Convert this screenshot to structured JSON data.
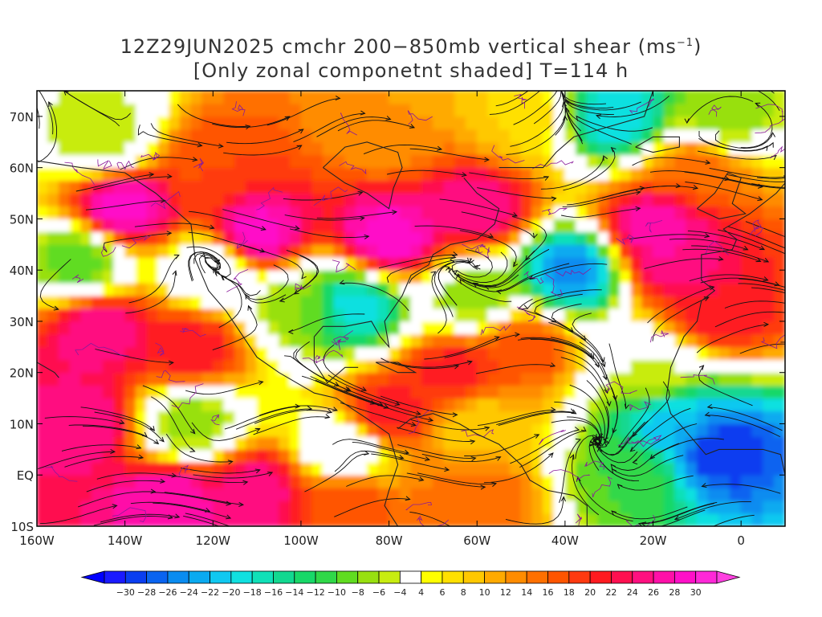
{
  "title": {
    "line1_prefix": "12Z29JUN2025 cmchr 200−850mb vertical shear (ms",
    "line1_sup": "−1",
    "line1_suffix": ")",
    "line2": "[Only zonal componetnt shaded] T=114 h"
  },
  "map": {
    "lon_range": [
      -160,
      10
    ],
    "lat_range": [
      -10,
      75
    ],
    "lat_ticks": [
      {
        "value": 70,
        "label": "70N"
      },
      {
        "value": 60,
        "label": "60N"
      },
      {
        "value": 50,
        "label": "50N"
      },
      {
        "value": 40,
        "label": "40N"
      },
      {
        "value": 30,
        "label": "30N"
      },
      {
        "value": 20,
        "label": "20N"
      },
      {
        "value": 10,
        "label": "10N"
      },
      {
        "value": 0,
        "label": "EQ"
      },
      {
        "value": -10,
        "label": "10S"
      }
    ],
    "lon_ticks": [
      {
        "value": -160,
        "label": "160W"
      },
      {
        "value": -140,
        "label": "140W"
      },
      {
        "value": -120,
        "label": "120W"
      },
      {
        "value": -100,
        "label": "100W"
      },
      {
        "value": -80,
        "label": "80W"
      },
      {
        "value": -60,
        "label": "60W"
      },
      {
        "value": -40,
        "label": "40W"
      },
      {
        "value": -20,
        "label": "20W"
      },
      {
        "value": 0,
        "label": "0"
      }
    ]
  },
  "colorbar": {
    "labels": [
      "−30",
      "−28",
      "−26",
      "−24",
      "−22",
      "−20",
      "−18",
      "−16",
      "−14",
      "−12",
      "−10",
      "−8",
      "−6",
      "−4",
      "4",
      "6",
      "8",
      "10",
      "12",
      "14",
      "16",
      "18",
      "20",
      "22",
      "24",
      "26",
      "28",
      "30"
    ],
    "colors": [
      "#1a1aff",
      "#0a3ef0",
      "#0a64f0",
      "#0a8cf0",
      "#0aaaf0",
      "#10c8f0",
      "#10e0e0",
      "#10e0b8",
      "#12d890",
      "#18d868",
      "#30d848",
      "#60dc20",
      "#98e010",
      "#c8ec10",
      "#ffffff",
      "#ffff00",
      "#ffe000",
      "#ffc800",
      "#ffaa00",
      "#ff8c00",
      "#ff7000",
      "#ff5500",
      "#ff3a10",
      "#ff1a20",
      "#ff1050",
      "#ff1080",
      "#ff10a8",
      "#ff10c8",
      "#ff28d8"
    ]
  },
  "shading": {
    "centers": [
      {
        "lon": -140,
        "lat": 52,
        "v": 30
      },
      {
        "lon": -110,
        "lat": 47,
        "v": 30
      },
      {
        "lon": -80,
        "lat": 46,
        "v": 30
      },
      {
        "lon": -60,
        "lat": 52,
        "v": 26
      },
      {
        "lon": -120,
        "lat": 60,
        "v": 18
      },
      {
        "lon": -145,
        "lat": 28,
        "v": 26
      },
      {
        "lon": -125,
        "lat": 25,
        "v": 22
      },
      {
        "lon": -150,
        "lat": 10,
        "v": 26
      },
      {
        "lon": -130,
        "lat": -5,
        "v": 28
      },
      {
        "lon": -110,
        "lat": -3,
        "v": 26
      },
      {
        "lon": -90,
        "lat": -5,
        "v": 18
      },
      {
        "lon": -60,
        "lat": -5,
        "v": 16
      },
      {
        "lon": -65,
        "lat": 20,
        "v": 22
      },
      {
        "lon": -50,
        "lat": 25,
        "v": 18
      },
      {
        "lon": -80,
        "lat": 12,
        "v": 22
      },
      {
        "lon": -15,
        "lat": 42,
        "v": 26
      },
      {
        "lon": -5,
        "lat": 32,
        "v": 22
      },
      {
        "lon": -20,
        "lat": 48,
        "v": 28
      },
      {
        "lon": -10,
        "lat": 60,
        "v": 16
      },
      {
        "lon": -60,
        "lat": 35,
        "v": -8
      },
      {
        "lon": -38,
        "lat": 40,
        "v": -26
      },
      {
        "lon": -88,
        "lat": 33,
        "v": -20
      },
      {
        "lon": -100,
        "lat": 33,
        "v": -8
      },
      {
        "lon": -150,
        "lat": 42,
        "v": -10
      },
      {
        "lon": -120,
        "lat": 40,
        "v": -4
      },
      {
        "lon": -28,
        "lat": 70,
        "v": -20
      },
      {
        "lon": -5,
        "lat": 70,
        "v": -8
      },
      {
        "lon": -145,
        "lat": 66,
        "v": -6
      },
      {
        "lon": -5,
        "lat": 5,
        "v": -30
      },
      {
        "lon": -15,
        "lat": 10,
        "v": -22
      },
      {
        "lon": -25,
        "lat": 0,
        "v": -10
      },
      {
        "lon": -20,
        "lat": 20,
        "v": -4
      },
      {
        "lon": -125,
        "lat": 10,
        "v": -8
      },
      {
        "lon": -90,
        "lat": 5,
        "v": -4
      },
      {
        "lon": -60,
        "lat": 10,
        "v": 8
      },
      {
        "lon": -80,
        "lat": 68,
        "v": 12
      },
      {
        "lon": -50,
        "lat": 70,
        "v": 8
      }
    ]
  }
}
